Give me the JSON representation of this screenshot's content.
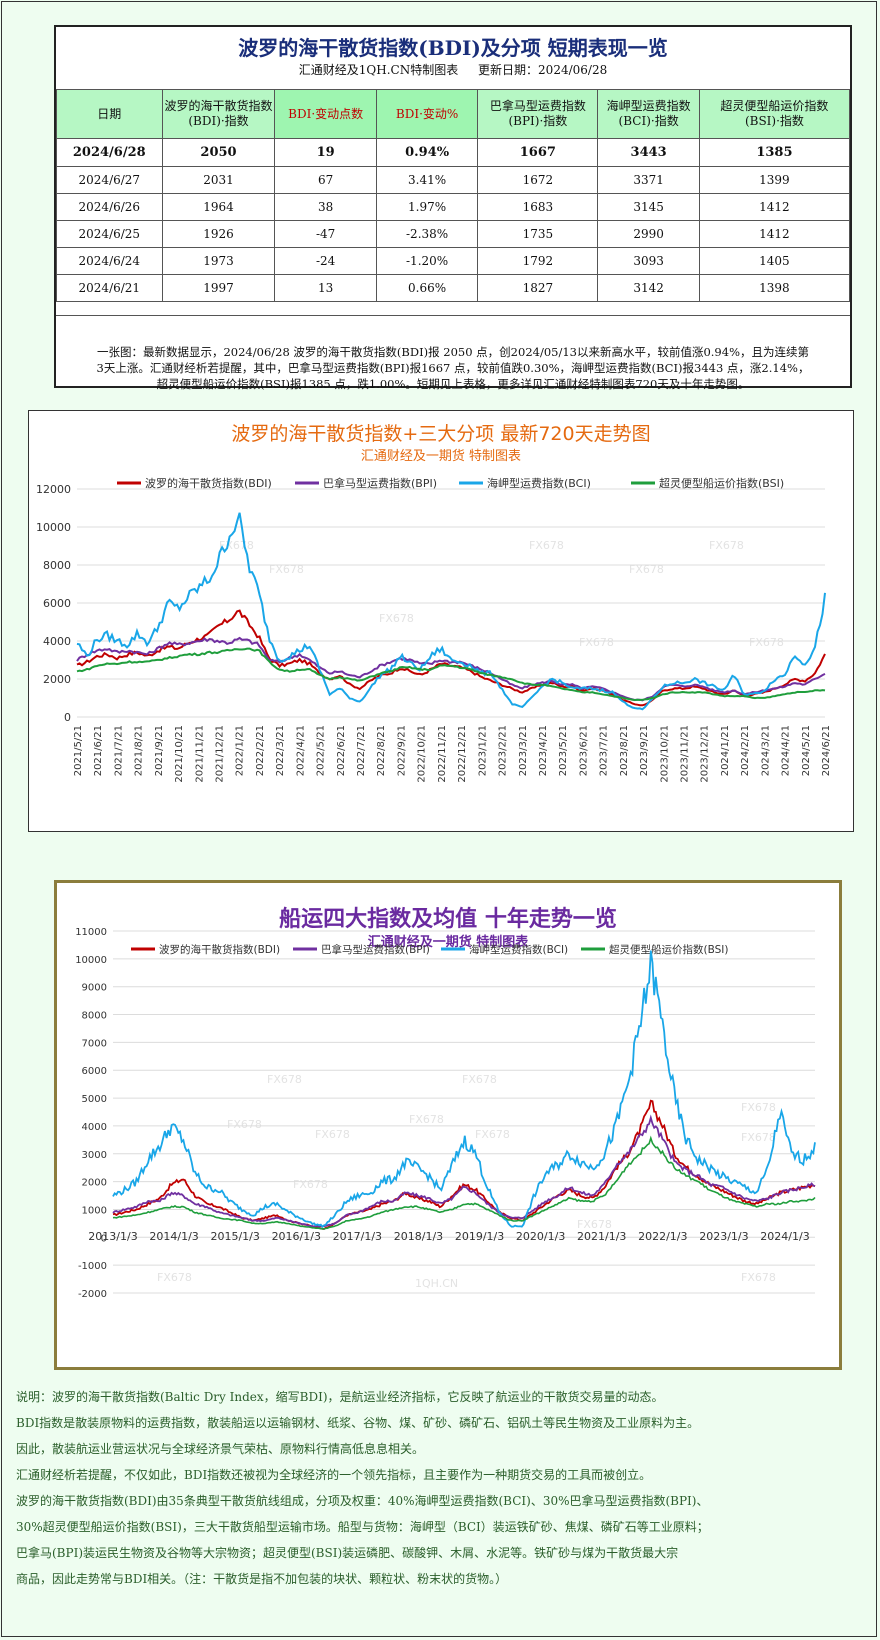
{
  "table": {
    "title": "波罗的海干散货指数(BDI)及分项 短期表现一览",
    "subtitle_source": "汇通财经及1QH.CN特制图表",
    "subtitle_date": "更新日期：2024/06/28",
    "headers": [
      "日期",
      "波罗的海干散货指数\n(BDI)·指数",
      "BDI·变动点数",
      "BDI·变动%",
      "巴拿马型运费指数\n(BPI)·指数",
      "海岬型运费指数\n(BCI)·指数",
      "超灵便型船运价指数\n(BSI)·指数"
    ],
    "rows": [
      [
        "2024/6/28",
        "2050",
        "19",
        "0.94%",
        "1667",
        "3443",
        "1385"
      ],
      [
        "2024/6/27",
        "2031",
        "67",
        "3.41%",
        "1672",
        "3371",
        "1399"
      ],
      [
        "2024/6/26",
        "1964",
        "38",
        "1.97%",
        "1683",
        "3145",
        "1412"
      ],
      [
        "2024/6/25",
        "1926",
        "-47",
        "-2.38%",
        "1735",
        "2990",
        "1412"
      ],
      [
        "2024/6/24",
        "1973",
        "-24",
        "-1.20%",
        "1792",
        "3093",
        "1405"
      ],
      [
        "2024/6/21",
        "1997",
        "13",
        "0.66%",
        "1827",
        "3142",
        "1398"
      ]
    ],
    "note_lines": [
      "一张图：最新数据显示，2024/06/28 波罗的海干散货指数(BDI)报 2050 点，创2024/05/13以来新高水平，较前值涨0.94%，且为连续第",
      "3天上涨。汇通财经析若提醒，其中，巴拿马型运费指数(BPI)报1667 点，较前值跌0.30%，海岬型运费指数(BCI)报3443 点，涨2.14%，",
      "超灵便型船运价指数(BSI)报1385 点，跌1.00%。短期见上表格，更多详见汇通财经特制图表720天及十年走势图。"
    ]
  },
  "chart1": {
    "title": "波罗的海干散货指数+三大分项  最新720天走势图",
    "subtitle": "汇通财经及一期货  特制图表",
    "watermark": "FX678"
  },
  "chart2": {
    "title": "船运四大指数及均值 十年走势一览",
    "subtitle": "汇通财经及一期货 特制图表",
    "watermark": "FX678",
    "watermark2": "1QH.CN"
  },
  "chart_data": [
    {
      "type": "line",
      "title": "波罗的海干散货指数+三大分项  最新720天走势图",
      "legend_position": "top",
      "ylim": [
        0,
        12000
      ],
      "yticks": [
        0,
        2000,
        4000,
        6000,
        8000,
        10000,
        12000
      ],
      "xticks": [
        "2021/5/21",
        "2021/6/21",
        "2021/7/21",
        "2021/8/21",
        "2021/9/21",
        "2021/10/21",
        "2021/11/21",
        "2021/12/21",
        "2022/1/21",
        "2022/2/21",
        "2022/3/21",
        "2022/4/21",
        "2022/5/21",
        "2022/6/21",
        "2022/7/21",
        "2022/8/21",
        "2022/9/21",
        "2022/10/21",
        "2022/11/21",
        "2022/12/21",
        "2023/1/21",
        "2023/2/21",
        "2023/3/21",
        "2023/4/21",
        "2023/5/21",
        "2023/6/21",
        "2023/7/21",
        "2023/8/21",
        "2023/9/21",
        "2023/10/21",
        "2023/11/21",
        "2023/12/21",
        "2024/1/21",
        "2024/2/21",
        "2024/3/21",
        "2024/4/21",
        "2024/5/21",
        "2024/6/21"
      ],
      "x_index": [
        0,
        2,
        4,
        6,
        8,
        10,
        12,
        14,
        16,
        18,
        20,
        22,
        24,
        26,
        28,
        30,
        32,
        34,
        36,
        38,
        40,
        42,
        44,
        46,
        48,
        50,
        52,
        54,
        56,
        58,
        60,
        62,
        64,
        66,
        68,
        70,
        72,
        74,
        76,
        78,
        80,
        82,
        84,
        86,
        88,
        90,
        92,
        94,
        96,
        98,
        100,
        102,
        104,
        106,
        108,
        110,
        112,
        114,
        116,
        118,
        120,
        122,
        124,
        126,
        128,
        130,
        132,
        134,
        136,
        138,
        140,
        142,
        144,
        146,
        148
      ],
      "series": [
        {
          "name": "波罗的海干散货指数(BDI)",
          "color": "#c00000",
          "values": [
            2700,
            2900,
            3200,
            3300,
            3100,
            3300,
            3400,
            3200,
            3500,
            3700,
            3600,
            3900,
            4100,
            4300,
            4800,
            5100,
            5600,
            4900,
            4200,
            3100,
            2700,
            2800,
            3000,
            2800,
            2300,
            2000,
            2200,
            1700,
            1500,
            1900,
            2200,
            2300,
            2600,
            2400,
            2200,
            2500,
            2800,
            2700,
            2600,
            2400,
            2100,
            1900,
            1700,
            1500,
            1300,
            1500,
            1700,
            1800,
            1600,
            1600,
            1400,
            1500,
            1400,
            1200,
            900,
            700,
            600,
            900,
            1400,
            1500,
            1500,
            1600,
            1500,
            1300,
            1200,
            1400,
            1100,
            1200,
            1300,
            1500,
            1700,
            2000,
            1900,
            2300,
            3300
          ]
        },
        {
          "name": "巴拿马型运费指数(BPI)",
          "color": "#7030a0",
          "values": [
            3000,
            3300,
            3500,
            3600,
            3400,
            3500,
            3400,
            3300,
            3600,
            3900,
            3800,
            3900,
            4000,
            4100,
            4000,
            3900,
            4100,
            4000,
            3800,
            3000,
            2900,
            3100,
            3300,
            3000,
            2600,
            2300,
            2400,
            2200,
            2100,
            2400,
            2700,
            2900,
            3100,
            3000,
            2800,
            2800,
            3000,
            2900,
            2900,
            2700,
            2500,
            2300,
            2000,
            1700,
            1500,
            1700,
            1800,
            1900,
            1700,
            1700,
            1500,
            1600,
            1500,
            1300,
            1100,
            900,
            900,
            1100,
            1600,
            1700,
            1600,
            1700,
            1600,
            1400,
            1300,
            1400,
            1200,
            1300,
            1400,
            1500,
            1600,
            1800,
            1700,
            2000,
            2300
          ]
        },
        {
          "name": "海岬型运费指数(BCI)",
          "color": "#19a6e8",
          "values": [
            3900,
            3200,
            4100,
            4300,
            4000,
            3800,
            4400,
            3900,
            4700,
            6000,
            5700,
            6300,
            6800,
            7200,
            8200,
            9500,
            10500,
            8000,
            6500,
            4200,
            3000,
            3200,
            3500,
            3800,
            2500,
            1200,
            1500,
            1000,
            800,
            1500,
            2200,
            2500,
            3200,
            2800,
            2500,
            3200,
            3600,
            3000,
            2900,
            2700,
            2300,
            2300,
            1500,
            700,
            500,
            1000,
            1600,
            2000,
            1800,
            1500,
            1500,
            1500,
            1400,
            1300,
            800,
            500,
            400,
            1000,
            1600,
            1800,
            1800,
            2000,
            1800,
            1600,
            1400,
            2200,
            1200,
            1200,
            1400,
            2000,
            2200,
            3300,
            2800,
            3600,
            6300
          ]
        },
        {
          "name": "超灵便型船运价指数(BSI)",
          "color": "#1f9e3c",
          "values": [
            2400,
            2500,
            2700,
            2800,
            2800,
            2900,
            2900,
            2900,
            3000,
            3100,
            3200,
            3300,
            3300,
            3400,
            3400,
            3500,
            3600,
            3600,
            3500,
            2900,
            2500,
            2400,
            2500,
            2500,
            2200,
            2000,
            2100,
            2000,
            1900,
            2100,
            2300,
            2400,
            2600,
            2600,
            2500,
            2500,
            2700,
            2700,
            2600,
            2500,
            2300,
            2200,
            2100,
            2000,
            1800,
            1700,
            1700,
            1600,
            1500,
            1400,
            1300,
            1300,
            1200,
            1100,
            1000,
            900,
            900,
            1000,
            1200,
            1300,
            1300,
            1300,
            1300,
            1200,
            1100,
            1100,
            1100,
            1000,
            1000,
            1100,
            1200,
            1300,
            1300,
            1400,
            1400
          ]
        }
      ]
    },
    {
      "type": "line",
      "title": "船运四大指数及均值 十年走势一览",
      "legend_position": "top",
      "ylim": [
        -2000,
        11000
      ],
      "yticks": [
        -2000,
        -1000,
        0,
        1000,
        2000,
        3000,
        4000,
        5000,
        6000,
        7000,
        8000,
        9000,
        10000,
        11000
      ],
      "xticks": [
        "2013/1/3",
        "2014/1/3",
        "2015/1/3",
        "2016/1/3",
        "2017/1/3",
        "2018/1/3",
        "2019/1/3",
        "2020/1/3",
        "2021/1/3",
        "2022/1/3",
        "2023/1/3",
        "2024/1/3"
      ],
      "series": [
        {
          "name": "波罗的海干散货指数(BDI)",
          "color": "#c00000",
          "values": [
            800,
            900,
            1000,
            1200,
            1400,
            1900,
            2100,
            1500,
            1200,
            1100,
            900,
            700,
            600,
            700,
            800,
            600,
            500,
            400,
            300,
            500,
            800,
            900,
            1000,
            1200,
            1300,
            1600,
            1400,
            1300,
            1100,
            1500,
            1900,
            1700,
            1300,
            900,
            700,
            600,
            900,
            1200,
            1500,
            1700,
            1500,
            1400,
            1800,
            2500,
            3000,
            3800,
            4800,
            4000,
            3000,
            2500,
            2200,
            1900,
            1700,
            1500,
            1300,
            1200,
            1400,
            1600,
            1700,
            1800,
            1900
          ]
        },
        {
          "name": "巴拿马型运费指数(BPI)",
          "color": "#7030a0",
          "values": [
            900,
            1000,
            1100,
            1300,
            1300,
            1600,
            1500,
            1200,
            1100,
            900,
            800,
            700,
            600,
            600,
            700,
            600,
            500,
            400,
            400,
            500,
            800,
            900,
            1100,
            1300,
            1300,
            1600,
            1500,
            1400,
            1200,
            1400,
            1800,
            1600,
            1200,
            900,
            700,
            700,
            1000,
            1300,
            1500,
            1800,
            1600,
            1500,
            1900,
            2600,
            3000,
            3600,
            4200,
            3500,
            2700,
            2400,
            2200,
            1900,
            1800,
            1600,
            1400,
            1300,
            1400,
            1600,
            1700,
            1800,
            1900
          ]
        },
        {
          "name": "海岬型运费指数(BCI)",
          "color": "#19a6e8",
          "values": [
            1500,
            1700,
            2000,
            2800,
            3300,
            4000,
            3500,
            2300,
            1800,
            1700,
            1300,
            1000,
            800,
            1100,
            1200,
            900,
            700,
            500,
            400,
            800,
            1300,
            1500,
            1600,
            2000,
            2100,
            2700,
            2500,
            2200,
            1700,
            2600,
            3500,
            3000,
            1800,
            900,
            400,
            400,
            1500,
            2300,
            2600,
            3000,
            2700,
            2500,
            3000,
            4000,
            5500,
            7500,
            9800,
            7500,
            5000,
            3500,
            2800,
            2500,
            2200,
            2000,
            1800,
            1600,
            2500,
            4500,
            3000,
            2800,
            3200
          ]
        },
        {
          "name": "超灵便型船运价指数(BSI)",
          "color": "#1f9e3c",
          "values": [
            700,
            750,
            800,
            900,
            1000,
            1100,
            1100,
            900,
            800,
            700,
            650,
            600,
            500,
            500,
            550,
            500,
            400,
            350,
            300,
            400,
            600,
            650,
            750,
            900,
            1000,
            1100,
            1100,
            1000,
            900,
            1000,
            1200,
            1200,
            1000,
            800,
            600,
            600,
            800,
            1000,
            1200,
            1400,
            1300,
            1300,
            1500,
            2000,
            2600,
            3000,
            3500,
            3000,
            2500,
            2200,
            2000,
            1700,
            1500,
            1300,
            1200,
            1100,
            1200,
            1200,
            1300,
            1300,
            1400
          ]
        }
      ]
    }
  ],
  "notes": [
    "说明：波罗的海干散货指数(Baltic Dry Index，缩写BDI)，是航运业经济指标，它反映了航运业的干散货交易量的动态。",
    "BDI指数是散装原物料的运费指数，散装船运以运输钢材、纸浆、谷物、煤、矿砂、磷矿石、铝矾土等民生物资及工业原料为主。",
    "因此，散装航运业营运状况与全球经济景气荣枯、原物料行情高低息息相关。",
    "汇通财经析若提醒，不仅如此，BDI指数还被视为全球经济的一个领先指标，且主要作为一种期货交易的工具而被创立。",
    "波罗的海干散货指数(BDI)由35条典型干散货航线组成，分项及权重：40%海岬型运费指数(BCI)、30%巴拿马型运费指数(BPI)、",
    "30%超灵便型船运价指数(BSI)，三大干散货船型运输市场。船型与货物：海岬型（BCI）装运铁矿砂、焦煤、磷矿石等工业原料；",
    "巴拿马(BPI)装运民生物资及谷物等大宗物资；超灵便型(BSI)装运磷肥、碳酸钾、木屑、水泥等。铁矿砂与煤为干散货最大宗",
    "商品，因此走势常与BDI相关。（注：干散货是指不加包装的块状、颗粒状、粉末状的货物。）"
  ]
}
